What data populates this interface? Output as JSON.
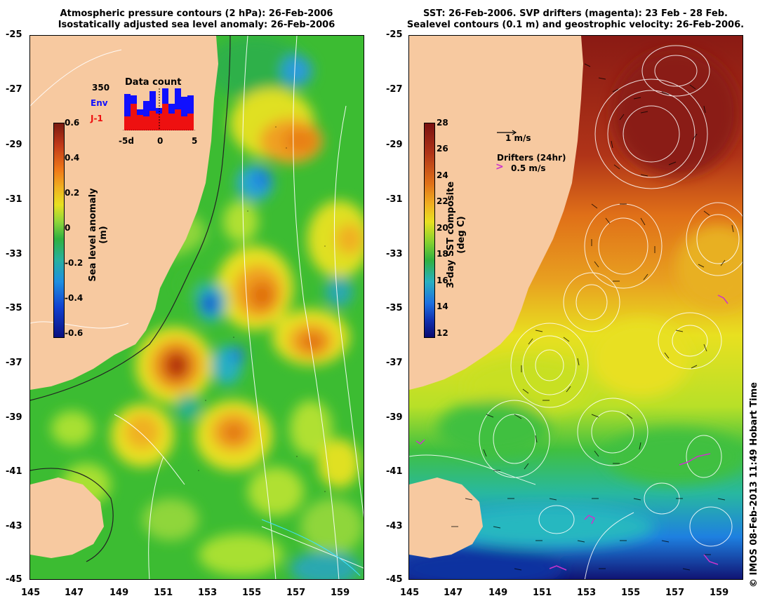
{
  "left_panel": {
    "title_line1": "Atmospheric pressure contours (2 hPa): 26-Feb-2006",
    "title_line2": "Isostatically adjusted sea level anomaly: 26-Feb-2006",
    "colorbar_label": "Sea level anomaly (m)",
    "colorbar_ticks": [
      "0.6",
      "0.4",
      "0.2",
      "0",
      "-0.2",
      "-0.4",
      "-0.6"
    ],
    "inset": {
      "title": "Data count",
      "count": "350",
      "env_label": "Env",
      "j1_label": "J-1",
      "env_color": "#1010ff",
      "j1_color": "#ee1010",
      "x_ticks": [
        "-5d",
        "0",
        "5"
      ]
    }
  },
  "right_panel": {
    "title_line1": "SST: 26-Feb-2006. SVP drifters (magenta): 23 Feb - 28 Feb.",
    "title_line2": "Sealevel contours (0.1 m) and geostrophic velocity: 26-Feb-2006.",
    "colorbar_label": "3-day SST composite (deg C)",
    "colorbar_ticks": [
      "28",
      "26",
      "24",
      "22",
      "20",
      "18",
      "16",
      "14",
      "12"
    ],
    "velocity_scale": "1 m/s",
    "drifters_title": "Drifters (24hr)",
    "drifters_scale": "0.5 m/s",
    "drifter_color": "#cc33cc"
  },
  "axes": {
    "y_ticks": [
      "-25",
      "-27",
      "-29",
      "-31",
      "-33",
      "-35",
      "-37",
      "-39",
      "-41",
      "-43",
      "-45"
    ],
    "x_ticks": [
      "145",
      "147",
      "149",
      "151",
      "153",
      "155",
      "157",
      "159"
    ]
  },
  "colors": {
    "land": "#f7c9a0",
    "ocean_sla_base": "#33b833",
    "ocean_sst_warm": "#c06020"
  },
  "credit": "© IMOS 08-Feb-2013 11:49 Hobart Time"
}
